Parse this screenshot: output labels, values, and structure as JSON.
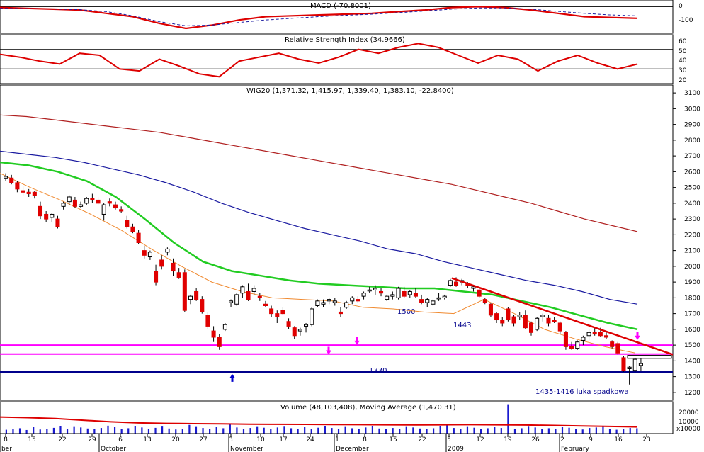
{
  "panels": {
    "macd": {
      "label": "MACD (-70.8001)",
      "ticks": [
        "0",
        "-100"
      ]
    },
    "rsi": {
      "label": "Relative Strength Index (34.9666)",
      "ticks": [
        "60",
        "50",
        "40",
        "30",
        "20"
      ]
    },
    "main": {
      "label": "WIG20 (1,371.32, 1,415.97, 1,339.40, 1,383.10, -22.8400)"
    },
    "volume": {
      "label": "Volume (48,103,408), Moving Average (1,470.31)",
      "ticks": [
        "20000",
        "10000"
      ],
      "unit": "x10000"
    }
  },
  "annotations": {
    "level_1500": "1500",
    "level_1443": "1443",
    "level_1330": "1330",
    "gap_note": "1435-1416 luka spadkowa"
  },
  "colors": {
    "bull": "#ffffff",
    "bear": "#e00000",
    "ma_green": "#22cc22",
    "ma_blue": "#1a1aa0",
    "ma_red": "#b02020",
    "ma_orange": "#f08a30",
    "magenta": "#ff00ff",
    "support": "#00008b",
    "trend": "#dd0000"
  },
  "chart_data": [
    {
      "type": "candlestick",
      "title": "WIG20 (1,371.32, 1,415.97, 1,339.40, 1,383.10, -22.8400)",
      "ylim": [
        1150,
        3150
      ],
      "y_ticks": [
        1200,
        1300,
        1400,
        1500,
        1600,
        1700,
        1800,
        1900,
        2000,
        2100,
        2200,
        2300,
        2400,
        2500,
        2600,
        2700,
        2800,
        2900,
        3000,
        3100
      ],
      "x_tick_labels": [
        "8",
        "15",
        "22",
        "29",
        "6",
        "13",
        "20",
        "27",
        "3",
        "10",
        "17",
        "24",
        "1",
        "8",
        "15",
        "22",
        "5",
        "12",
        "19",
        "26",
        "2",
        "9",
        "16",
        "23"
      ],
      "x_month_labels": [
        "ber",
        "October",
        "November",
        "December",
        "2009",
        "February"
      ],
      "ohlc": [
        [
          2560,
          2590,
          2540,
          2570
        ],
        [
          2560,
          2580,
          2520,
          2530
        ],
        [
          2530,
          2540,
          2470,
          2490
        ],
        [
          2480,
          2510,
          2450,
          2470
        ],
        [
          2470,
          2490,
          2440,
          2460
        ],
        [
          2470,
          2480,
          2430,
          2450
        ],
        [
          2380,
          2410,
          2300,
          2320
        ],
        [
          2330,
          2350,
          2280,
          2300
        ],
        [
          2310,
          2340,
          2280,
          2330
        ],
        [
          2300,
          2320,
          2240,
          2250
        ],
        [
          2380,
          2410,
          2360,
          2400
        ],
        [
          2410,
          2450,
          2390,
          2440
        ],
        [
          2420,
          2440,
          2370,
          2380
        ],
        [
          2380,
          2410,
          2370,
          2390
        ],
        [
          2400,
          2440,
          2390,
          2430
        ],
        [
          2430,
          2460,
          2400,
          2420
        ],
        [
          2420,
          2440,
          2390,
          2400
        ],
        [
          2330,
          2400,
          2290,
          2390
        ],
        [
          2410,
          2430,
          2380,
          2400
        ],
        [
          2390,
          2410,
          2360,
          2370
        ],
        [
          2360,
          2380,
          2340,
          2350
        ],
        [
          2290,
          2320,
          2240,
          2250
        ],
        [
          2250,
          2270,
          2210,
          2220
        ],
        [
          2210,
          2230,
          2140,
          2150
        ],
        [
          2100,
          2130,
          2050,
          2070
        ],
        [
          2060,
          2100,
          2040,
          2090
        ],
        [
          1970,
          2010,
          1880,
          1900
        ],
        [
          2040,
          2070,
          1980,
          2000
        ],
        [
          2090,
          2120,
          2070,
          2110
        ],
        [
          2020,
          2050,
          1940,
          1970
        ],
        [
          1960,
          1990,
          1920,
          1930
        ],
        [
          1960,
          1980,
          1710,
          1720
        ],
        [
          1790,
          1820,
          1760,
          1810
        ],
        [
          1840,
          1860,
          1780,
          1790
        ],
        [
          1790,
          1810,
          1700,
          1710
        ],
        [
          1690,
          1710,
          1600,
          1620
        ],
        [
          1590,
          1620,
          1520,
          1550
        ],
        [
          1550,
          1570,
          1470,
          1490
        ],
        [
          1600,
          1640,
          1590,
          1630
        ],
        [
          1770,
          1790,
          1740,
          1780
        ],
        [
          1760,
          1830,
          1750,
          1820
        ],
        [
          1830,
          1880,
          1800,
          1870
        ],
        [
          1840,
          1890,
          1780,
          1790
        ],
        [
          1840,
          1880,
          1820,
          1860
        ],
        [
          1810,
          1830,
          1780,
          1800
        ],
        [
          1760,
          1780,
          1740,
          1750
        ],
        [
          1730,
          1750,
          1680,
          1700
        ],
        [
          1700,
          1720,
          1640,
          1680
        ],
        [
          1720,
          1740,
          1690,
          1700
        ],
        [
          1650,
          1670,
          1600,
          1620
        ],
        [
          1610,
          1620,
          1540,
          1560
        ],
        [
          1590,
          1610,
          1560,
          1600
        ],
        [
          1620,
          1640,
          1580,
          1630
        ],
        [
          1630,
          1740,
          1620,
          1730
        ],
        [
          1750,
          1790,
          1740,
          1780
        ],
        [
          1760,
          1790,
          1740,
          1770
        ],
        [
          1780,
          1800,
          1760,
          1790
        ],
        [
          1770,
          1800,
          1750,
          1780
        ],
        [
          1710,
          1740,
          1680,
          1700
        ],
        [
          1740,
          1780,
          1730,
          1770
        ],
        [
          1780,
          1810,
          1760,
          1800
        ],
        [
          1790,
          1810,
          1770,
          1780
        ],
        [
          1810,
          1840,
          1790,
          1830
        ],
        [
          1850,
          1870,
          1830,
          1850
        ],
        [
          1850,
          1880,
          1820,
          1860
        ],
        [
          1840,
          1860,
          1810,
          1830
        ],
        [
          1790,
          1820,
          1780,
          1810
        ],
        [
          1810,
          1840,
          1790,
          1820
        ],
        [
          1800,
          1870,
          1790,
          1860
        ],
        [
          1840,
          1870,
          1800,
          1810
        ],
        [
          1820,
          1850,
          1800,
          1840
        ],
        [
          1830,
          1860,
          1800,
          1810
        ],
        [
          1790,
          1820,
          1760,
          1770
        ],
        [
          1770,
          1800,
          1740,
          1790
        ],
        [
          1760,
          1790,
          1750,
          1780
        ],
        [
          1800,
          1830,
          1780,
          1800
        ],
        [
          1800,
          1820,
          1790,
          1810
        ],
        [
          1880,
          1920,
          1870,
          1910
        ],
        [
          1900,
          1930,
          1870,
          1880
        ],
        [
          1900,
          1920,
          1880,
          1910
        ],
        [
          1890,
          1900,
          1860,
          1880
        ],
        [
          1860,
          1880,
          1840,
          1870
        ],
        [
          1850,
          1860,
          1800,
          1810
        ],
        [
          1790,
          1800,
          1760,
          1770
        ],
        [
          1760,
          1770,
          1680,
          1690
        ],
        [
          1700,
          1710,
          1640,
          1660
        ],
        [
          1660,
          1680,
          1620,
          1640
        ],
        [
          1730,
          1740,
          1650,
          1660
        ],
        [
          1680,
          1690,
          1620,
          1640
        ],
        [
          1680,
          1710,
          1660,
          1690
        ],
        [
          1690,
          1720,
          1600,
          1610
        ],
        [
          1640,
          1650,
          1560,
          1580
        ],
        [
          1600,
          1680,
          1590,
          1670
        ],
        [
          1680,
          1700,
          1650,
          1690
        ],
        [
          1670,
          1690,
          1620,
          1640
        ],
        [
          1660,
          1680,
          1640,
          1650
        ],
        [
          1640,
          1650,
          1570,
          1590
        ],
        [
          1580,
          1590,
          1470,
          1490
        ],
        [
          1490,
          1520,
          1470,
          1480
        ],
        [
          1480,
          1530,
          1470,
          1520
        ],
        [
          1530,
          1560,
          1500,
          1550
        ],
        [
          1560,
          1600,
          1530,
          1580
        ],
        [
          1580,
          1610,
          1560,
          1570
        ],
        [
          1580,
          1610,
          1550,
          1560
        ],
        [
          1560,
          1580,
          1540,
          1550
        ],
        [
          1520,
          1530,
          1480,
          1490
        ],
        [
          1510,
          1520,
          1440,
          1450
        ],
        [
          1420,
          1430,
          1330,
          1340
        ],
        [
          1350,
          1370,
          1250,
          1360
        ],
        [
          1340,
          1420,
          1330,
          1410
        ],
        [
          1371,
          1416,
          1339,
          1383
        ]
      ],
      "series": [
        {
          "name": "",
          "values": [
            2590,
            2500,
            2420,
            2330,
            2230,
            2110,
            2000,
            1900,
            1840,
            1800,
            1790,
            1780,
            1740,
            1730,
            1710,
            1700,
            1790,
            1700,
            1600,
            1540,
            1490,
            1450
          ]
        },
        {
          "name": "",
          "values": [
            2660,
            2640,
            2600,
            2540,
            2440,
            2300,
            2150,
            2030,
            1970,
            1940,
            1910,
            1890,
            1880,
            1870,
            1860,
            1860,
            1840,
            1820,
            1780,
            1740,
            1690,
            1640,
            1600
          ]
        },
        {
          "name": "",
          "values": [
            2730,
            2710,
            2690,
            2660,
            2620,
            2580,
            2530,
            2470,
            2400,
            2340,
            2290,
            2240,
            2200,
            2160,
            2110,
            2080,
            2030,
            1990,
            1950,
            1910,
            1880,
            1840,
            1790,
            1760
          ]
        },
        {
          "name": "",
          "values": [
            2960,
            2950,
            2930,
            2910,
            2890,
            2870,
            2850,
            2820,
            2790,
            2760,
            2730,
            2700,
            2670,
            2640,
            2610,
            2580,
            2550,
            2520,
            2480,
            2440,
            2400,
            2350,
            2300,
            2260,
            2220
          ]
        }
      ]
    },
    {
      "type": "line",
      "title": "MACD (-70.8001)",
      "ylim": [
        -160,
        40
      ],
      "series": [
        {
          "name": "",
          "values": [
            -5,
            -10,
            -15,
            -20,
            -40,
            -60,
            -100,
            -130,
            -110,
            -80,
            -60,
            -55,
            -50,
            -45,
            -40,
            -30,
            -20,
            -5,
            0,
            -5,
            -20,
            -40,
            -60,
            -65,
            -70
          ]
        },
        {
          "name": "",
          "values": [
            -10,
            -12,
            -14,
            -18,
            -30,
            -55,
            -90,
            -115,
            -110,
            -95,
            -80,
            -70,
            -60,
            -52,
            -45,
            -36,
            -26,
            -15,
            -8,
            -8,
            -15,
            -28,
            -40,
            -50,
            -55
          ]
        }
      ]
    },
    {
      "type": "line",
      "title": "Relative Strength Index (34.9666)",
      "ylim": [
        15,
        65
      ],
      "series": [
        {
          "name": "",
          "values": [
            45,
            42,
            38,
            35,
            46,
            44,
            30,
            28,
            40,
            33,
            25,
            22,
            38,
            42,
            46,
            40,
            36,
            42,
            50,
            46,
            52,
            56,
            52,
            44,
            36,
            44,
            40,
            28,
            38,
            44,
            36,
            30,
            35
          ]
        }
      ]
    },
    {
      "type": "bar",
      "title": "Volume (48,103,408), Moving Average (1,470.31)",
      "ylim": [
        0,
        25000
      ],
      "values": [
        3000,
        3500,
        4200,
        2800,
        5000,
        3200,
        3800,
        4500,
        6000,
        3500,
        5200,
        4800,
        4000,
        3600,
        4400,
        6200,
        5000,
        3800,
        4200,
        5600,
        4800,
        3600,
        4500,
        5500,
        4000,
        3200,
        3800,
        6800,
        5200,
        4400,
        3800,
        5000,
        4200,
        7500,
        4800,
        3600,
        4400,
        5200,
        4600,
        3800,
        4800,
        5400,
        4200,
        3600,
        5000,
        3800,
        4600,
        6000,
        4400,
        3800,
        5200,
        4200,
        3600,
        4800,
        5600,
        4000,
        3600,
        4400,
        3800,
        5200,
        4800,
        4000,
        3600,
        4200,
        5600,
        7200,
        4400,
        3800,
        5200,
        4600,
        3600,
        4200,
        5000,
        4400,
        23000,
        3600,
        4200,
        5400,
        4800,
        3800,
        4200,
        3600,
        5000,
        4600,
        3800,
        3200,
        4400,
        4800,
        5600,
        3600,
        3000,
        3800,
        4400,
        4200
      ],
      "series": [
        {
          "name": "",
          "values": [
            13000,
            12500,
            11800,
            10500,
            9200,
            8400,
            8000,
            7800,
            7600,
            7400,
            7300,
            7200,
            7100,
            7000,
            6900,
            6800,
            6900,
            7000,
            6900,
            6700,
            6400,
            6000,
            5600,
            5200
          ]
        }
      ]
    }
  ]
}
